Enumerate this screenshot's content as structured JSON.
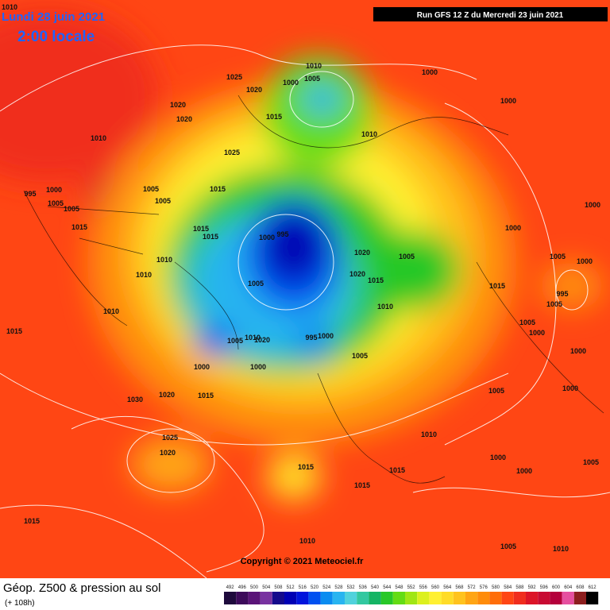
{
  "header": {
    "date": "Lundi 28 juin 2021",
    "time": "2:00 locale",
    "run": "Run GFS 12 Z du Mercredi 23 juin 2021"
  },
  "footer": {
    "copyright": "Copyright © 2021 Meteociel.fr",
    "title": "Géop. Z500 & pression au sol",
    "subtitle": "(+ 108h)"
  },
  "scale": {
    "ticks": [
      492,
      496,
      500,
      504,
      508,
      512,
      516,
      520,
      524,
      528,
      532,
      536,
      540,
      544,
      548,
      552,
      556,
      560,
      564,
      568,
      572,
      576,
      580,
      584,
      588,
      592,
      596,
      600,
      604,
      608,
      612
    ],
    "colors": [
      "#1e0a3c",
      "#3c0a5a",
      "#5a1478",
      "#7832a0",
      "#140a8c",
      "#0000b4",
      "#0014dc",
      "#0050f0",
      "#0a8cf0",
      "#28b4f0",
      "#50d2dc",
      "#32c8a0",
      "#14b464",
      "#28c828",
      "#64dc14",
      "#a0e614",
      "#dcf01e",
      "#fff032",
      "#ffdc28",
      "#ffc31e",
      "#ffa514",
      "#ff8c0a",
      "#ff6e0a",
      "#ff4614",
      "#f02d1e",
      "#dc1428",
      "#c80a32",
      "#b4003c",
      "#e650a0",
      "#8c1e1e",
      "#000000"
    ]
  },
  "isobar_labels": [
    "1010",
    "1025",
    "1020",
    "1010",
    "1000",
    "1005",
    "1000",
    "1000",
    "1020",
    "1020",
    "1015",
    "1010",
    "1010",
    "1025",
    "1015",
    "995",
    "1000",
    "1005",
    "1005",
    "1005",
    "1005",
    "1015",
    "1000",
    "1015",
    "1015",
    "1000",
    "995",
    "1000",
    "1020",
    "1005",
    "1005",
    "1000",
    "1010",
    "1010",
    "1005",
    "1020",
    "1015",
    "1015",
    "995",
    "1005",
    "1010",
    "1010",
    "1005",
    "1000",
    "1015",
    "1005",
    "1010",
    "1020",
    "995",
    "1000",
    "1005",
    "1000",
    "1000",
    "1000",
    "1000",
    "1005",
    "1020",
    "1015",
    "1030",
    "1010",
    "1025",
    "1020",
    "1000",
    "1005",
    "1000",
    "1015",
    "1015",
    "1015",
    "1015",
    "1010",
    "1005",
    "1010"
  ]
}
